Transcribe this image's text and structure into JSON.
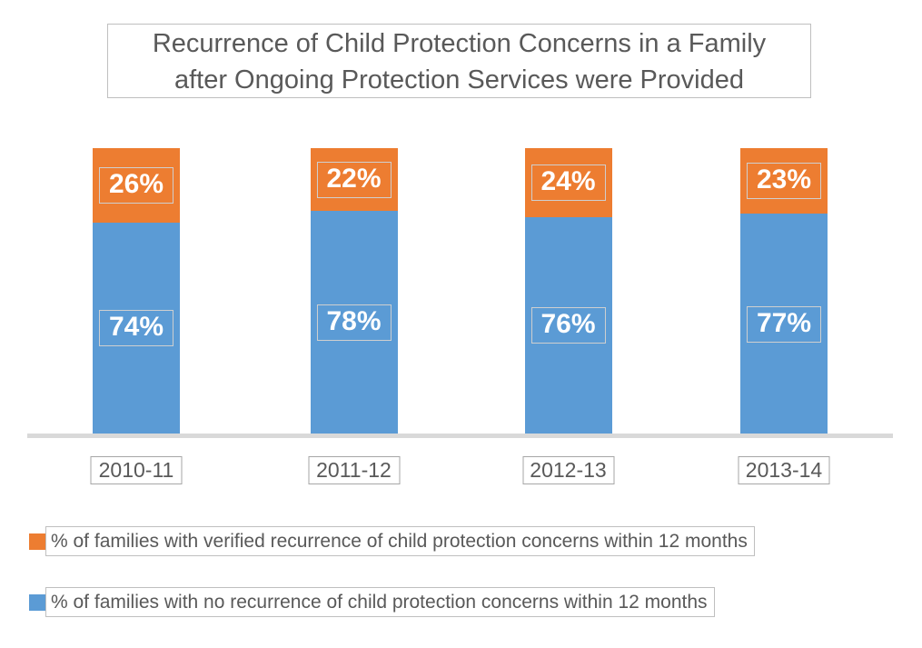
{
  "title": {
    "line1": "Recurrence of Child Protection Concerns in a Family",
    "line2": "after Ongoing Protection Services were Provided",
    "full": "Recurrence of Child Protection Concerns in a Family after Ongoing Protection Services were Provided"
  },
  "chart_data": {
    "type": "bar",
    "stacked": true,
    "orientation": "vertical",
    "categories": [
      "2010-11",
      "2011-12",
      "2012-13",
      "2013-14"
    ],
    "series": [
      {
        "name": "% of families with verified recurrence of child protection concerns within 12 months",
        "color": "#ED7D31",
        "values": [
          26,
          22,
          24,
          23
        ],
        "labels": [
          "26%",
          "22%",
          "24%",
          "23%"
        ]
      },
      {
        "name": "% of families with no recurrence of child protection concerns within 12 months",
        "color": "#5B9BD5",
        "values": [
          74,
          78,
          76,
          77
        ],
        "labels": [
          "74%",
          "78%",
          "76%",
          "77%"
        ]
      }
    ],
    "ylim": [
      0,
      100
    ],
    "grid": false,
    "y_axis_visible": false,
    "legend_position": "bottom",
    "data_label_color": "#FFFFFF"
  },
  "colors": {
    "title_text": "#595959",
    "axis_label_text": "#595959",
    "legend_text": "#595959",
    "axis_line": "#D9D9D9",
    "box_border": "#BFBFBF",
    "background": "#FFFFFF"
  }
}
